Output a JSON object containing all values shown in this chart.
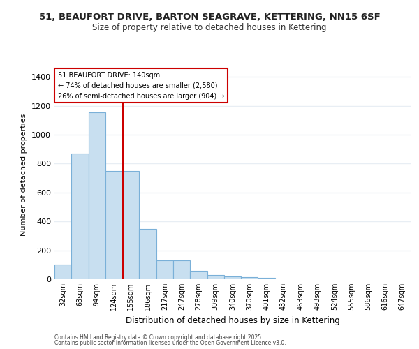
{
  "title1": "51, BEAUFORT DRIVE, BARTON SEAGRAVE, KETTERING, NN15 6SF",
  "title2": "Size of property relative to detached houses in Kettering",
  "xlabel": "Distribution of detached houses by size in Kettering",
  "ylabel": "Number of detached properties",
  "categories": [
    "32sqm",
    "63sqm",
    "94sqm",
    "124sqm",
    "155sqm",
    "186sqm",
    "217sqm",
    "247sqm",
    "278sqm",
    "309sqm",
    "340sqm",
    "370sqm",
    "401sqm",
    "432sqm",
    "463sqm",
    "493sqm",
    "524sqm",
    "555sqm",
    "586sqm",
    "616sqm",
    "647sqm"
  ],
  "values": [
    100,
    870,
    1155,
    750,
    750,
    350,
    130,
    130,
    60,
    30,
    20,
    15,
    10,
    0,
    0,
    0,
    0,
    0,
    0,
    0,
    0
  ],
  "bar_color": "#c8dff0",
  "bar_edge_color": "#7ab0d8",
  "vline_color": "#cc0000",
  "vline_pos": 3.52,
  "annotation_text_line1": "51 BEAUFORT DRIVE: 140sqm",
  "annotation_text_line2": "← 74% of detached houses are smaller (2,580)",
  "annotation_text_line3": "26% of semi-detached houses are larger (904) →",
  "annotation_box_color": "#cc0000",
  "ylim": [
    0,
    1450
  ],
  "yticks": [
    0,
    200,
    400,
    600,
    800,
    1000,
    1200,
    1400
  ],
  "bg_color": "#ffffff",
  "grid_color": "#e8eef4",
  "footer1": "Contains HM Land Registry data © Crown copyright and database right 2025.",
  "footer2": "Contains public sector information licensed under the Open Government Licence v3.0."
}
